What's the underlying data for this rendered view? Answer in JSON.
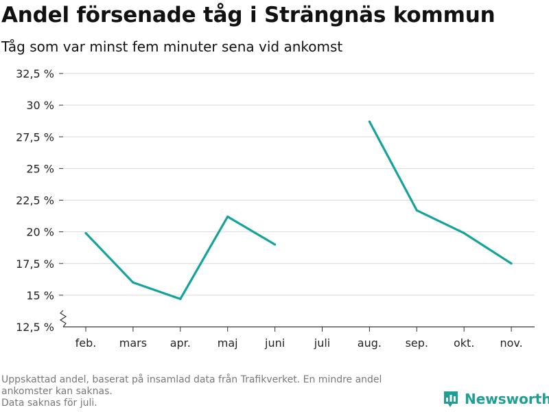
{
  "title": "Andel försenade tåg i Strängnäs kommun",
  "subtitle": "Tåg som var minst fem minuter sena vid ankomst",
  "colors": {
    "line": "#14a39a",
    "grid": "#d9d9d9",
    "axis": "#333333",
    "brand": "#1f9e93"
  },
  "chart_data": {
    "type": "line",
    "title": "Andel försenade tåg i Strängnäs kommun",
    "subtitle": "Tåg som var minst fem minuter sena vid ankomst",
    "xlabel": "",
    "ylabel": "",
    "categories": [
      "feb.",
      "mars",
      "apr.",
      "maj",
      "juni",
      "juli",
      "aug.",
      "sep.",
      "okt.",
      "nov."
    ],
    "series": [
      {
        "values": [
          19.9,
          16.0,
          14.7,
          21.2,
          19.0,
          null,
          28.7,
          21.7,
          19.9,
          17.5
        ]
      }
    ],
    "ylim": [
      12.5,
      32.5
    ],
    "yticks": [
      12.5,
      15,
      17.5,
      20,
      22.5,
      25,
      27.5,
      30,
      32.5
    ],
    "ytick_labels": [
      "12,5 %",
      "15 %",
      "17,5 %",
      "20 %",
      "22,5 %",
      "25 %",
      "27,5 %",
      "30 %",
      "32,5 %"
    ],
    "grid": true,
    "axis_break": true
  },
  "footnote": {
    "line1": "Uppskattad andel, baserat på insamlad data från Trafikverket. En mindre andel",
    "line2": "ankomster kan saknas.",
    "line3": "Data saknas för juli."
  },
  "brand": {
    "name": "Newsworthy",
    "icon": "newsworthy-logo-icon"
  }
}
